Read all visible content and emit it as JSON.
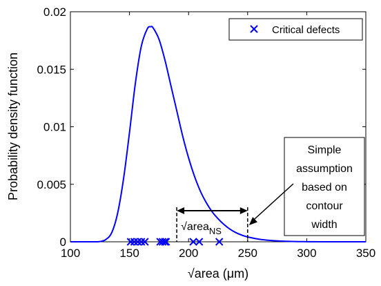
{
  "chart_data": {
    "type": "line",
    "xlabel": "√area (μm)",
    "ylabel": "Probability density function",
    "xlim": [
      100,
      350
    ],
    "ylim": [
      0,
      0.02
    ],
    "x_ticks": [
      100,
      150,
      200,
      250,
      300,
      350
    ],
    "y_ticks": [
      0,
      0.005,
      0.01,
      0.015,
      0.02
    ],
    "x_tick_labels": [
      "100",
      "150",
      "200",
      "250",
      "300",
      "350"
    ],
    "y_tick_labels": [
      "0",
      "0.005",
      "0.01",
      "0.015",
      "0.02"
    ],
    "grid": false,
    "legend_position": "top-right",
    "series": [
      {
        "kind": "line",
        "color": "#0000ff",
        "x": [
          100,
          120,
          125,
          130,
          135,
          140,
          145,
          150,
          155,
          160,
          165,
          168,
          170,
          175,
          180,
          185,
          190,
          195,
          200,
          205,
          210,
          215,
          220,
          225,
          230,
          235,
          240,
          245,
          250,
          260,
          270,
          280,
          290,
          300,
          320,
          350
        ],
        "y": [
          0,
          0,
          2e-05,
          0.0002,
          0.0008,
          0.0025,
          0.0055,
          0.0095,
          0.0138,
          0.017,
          0.0185,
          0.0187,
          0.0186,
          0.0176,
          0.0158,
          0.0136,
          0.0114,
          0.0092,
          0.0073,
          0.0057,
          0.0044,
          0.0034,
          0.0026,
          0.002,
          0.0015,
          0.0011,
          0.0008,
          0.00058,
          0.00042,
          0.00022,
          0.00011,
          5e-05,
          2e-05,
          1e-05,
          0,
          0
        ]
      },
      {
        "name": "Critical defects",
        "kind": "scatter",
        "marker": "x",
        "color": "#0000ff",
        "x": [
          151,
          154,
          157,
          160,
          163,
          176,
          178,
          180,
          181,
          204,
          209,
          226
        ],
        "y": [
          0,
          0,
          0,
          0,
          0,
          0,
          0,
          0,
          0,
          0,
          0,
          0
        ]
      }
    ],
    "annotations": {
      "range_label": "√area",
      "range_subscript": "NS",
      "range_x": [
        190,
        250
      ],
      "callout_lines": [
        "Simple",
        "assumption",
        "based on",
        "contour",
        "width"
      ],
      "callout_target_x": 250
    }
  }
}
